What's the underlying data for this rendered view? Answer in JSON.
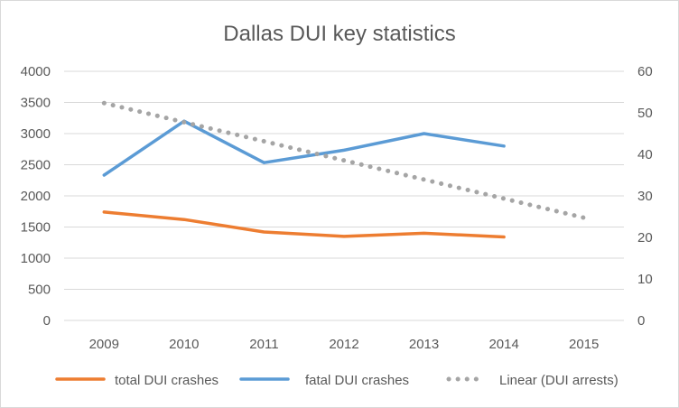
{
  "chart_data": {
    "type": "line",
    "title": "Dallas DUI key statistics",
    "categories": [
      "2009",
      "2010",
      "2011",
      "2012",
      "2013",
      "2014",
      "2015"
    ],
    "y_left": {
      "ylim": [
        0,
        4000
      ],
      "ticks": [
        "0",
        "500",
        "1000",
        "1500",
        "2000",
        "2500",
        "3000",
        "3500",
        "4000"
      ]
    },
    "y_right": {
      "ylim": [
        0,
        60
      ],
      "ticks": [
        "0",
        "10",
        "20",
        "30",
        "40",
        "50",
        "60"
      ]
    },
    "grid": true,
    "legend_position": "bottom",
    "series": [
      {
        "name": "total DUI crashes",
        "axis": "left",
        "style": "solid",
        "color": "#ed7d31",
        "values": [
          1740,
          1620,
          1420,
          1350,
          1400,
          1340,
          null
        ]
      },
      {
        "name": "fatal DUI crashes",
        "axis": "right",
        "style": "solid",
        "color": "#5b9bd5",
        "values": [
          35,
          48,
          38,
          41,
          45,
          42,
          null
        ]
      },
      {
        "name": "Linear (DUI arrests)",
        "axis": "left",
        "style": "dotted",
        "color": "#a5a5a5",
        "values": [
          3490,
          3183,
          2877,
          2570,
          2263,
          1957,
          1650
        ]
      }
    ]
  }
}
